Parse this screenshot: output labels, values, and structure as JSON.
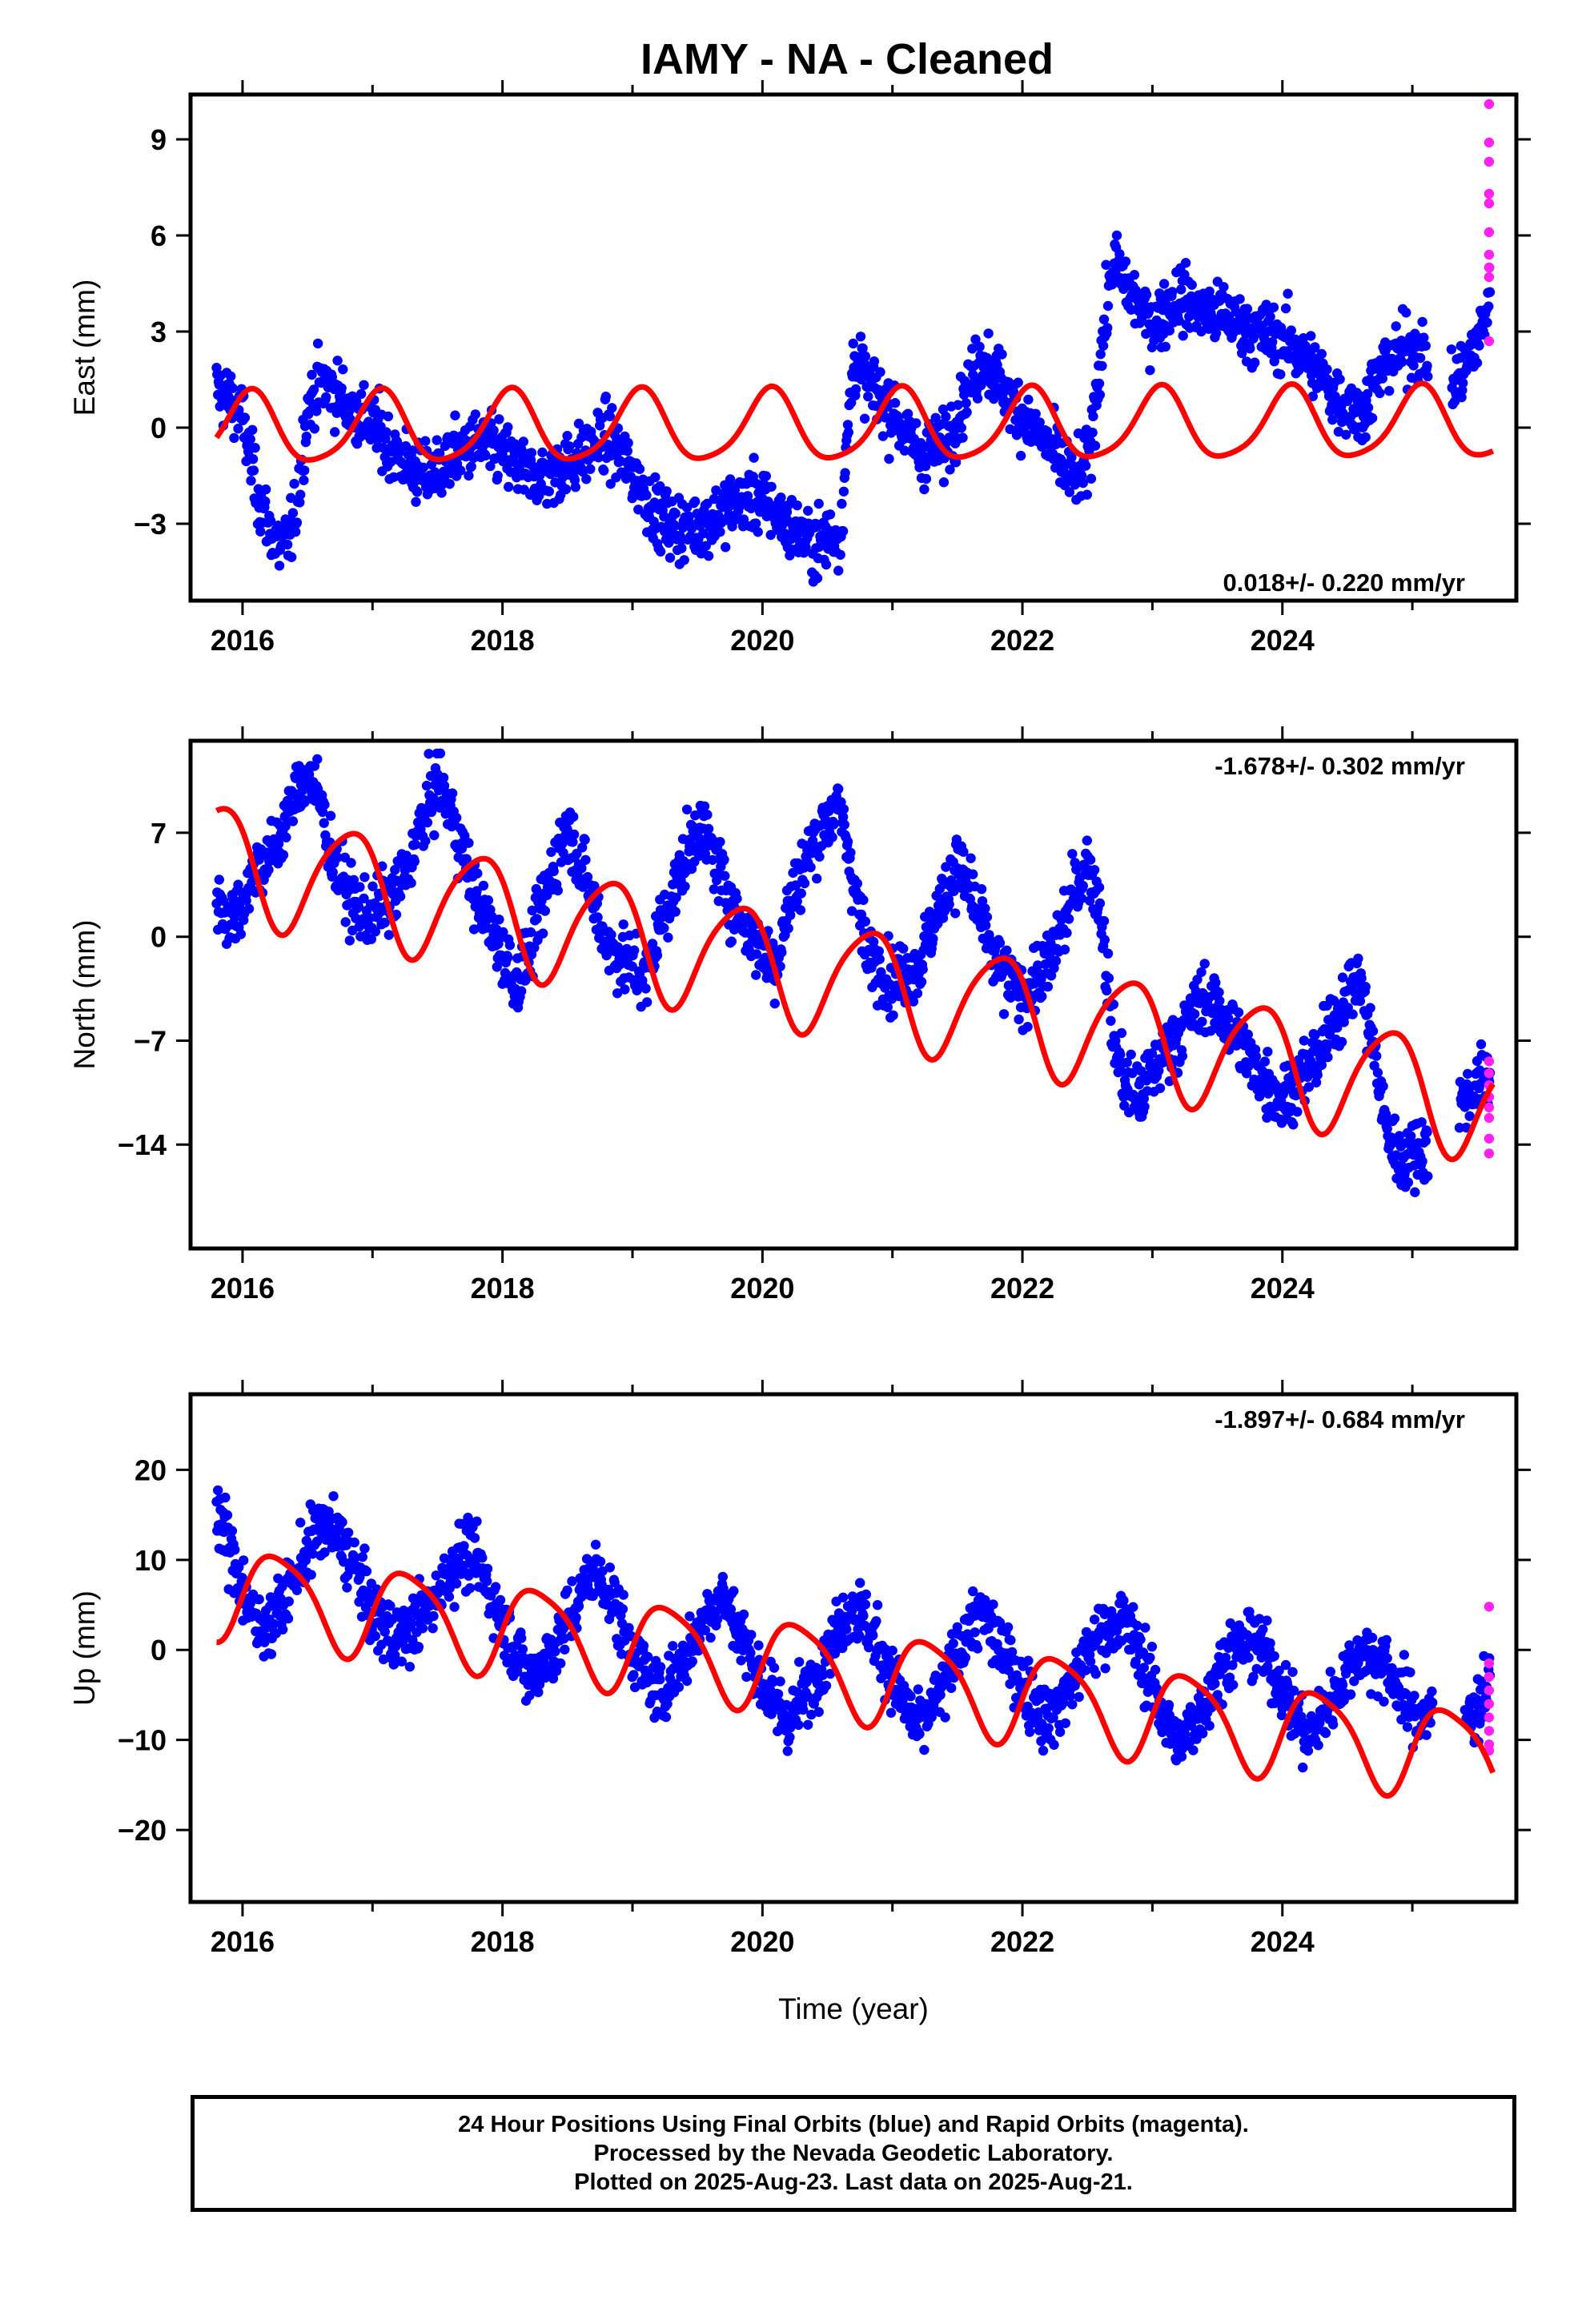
{
  "title": "IAMY  - NA - Cleaned",
  "colors": {
    "final": "#0000ff",
    "rapid": "#ff22ee",
    "model": "#ff0000"
  },
  "caption": [
    "24 Hour Positions Using Final Orbits (blue) and Rapid Orbits (magenta).",
    "Processed by the Nevada Geodetic Laboratory.",
    "Plotted on 2025-Aug-23. Last data on 2025-Aug-21."
  ],
  "chart_data": [
    {
      "type": "scatter",
      "ylabel": "East (mm)",
      "xlabel": "",
      "rate_label": "0.018+/- 0.220 mm/yr",
      "xlim": [
        2015.6,
        2025.8
      ],
      "ylim": [
        -5.4,
        10.4
      ],
      "yticks": [
        -3,
        0,
        3,
        6,
        9
      ],
      "ytick_labels": [
        "−3",
        "0",
        "3",
        "6",
        "9"
      ],
      "xticks": [
        2016,
        2018,
        2020,
        2022,
        2024
      ],
      "xtick_labels": [
        "2016",
        "2018",
        "2020",
        "2022",
        "2024"
      ],
      "final_orbit_series": [
        [
          2015.8,
          1.2
        ],
        [
          2015.9,
          0.9
        ],
        [
          2016.0,
          0.3
        ],
        [
          2016.1,
          -1.8
        ],
        [
          2016.2,
          -3.1
        ],
        [
          2016.3,
          -3.8
        ],
        [
          2016.4,
          -3.0
        ],
        [
          2016.5,
          0.6
        ],
        [
          2016.6,
          1.4
        ],
        [
          2016.7,
          1.2
        ],
        [
          2016.8,
          0.7
        ],
        [
          2016.9,
          0.4
        ],
        [
          2017.0,
          0.1
        ],
        [
          2017.2,
          -0.9
        ],
        [
          2017.4,
          -1.6
        ],
        [
          2017.6,
          -1.0
        ],
        [
          2017.8,
          -0.5
        ],
        [
          2018.0,
          -0.8
        ],
        [
          2018.2,
          -1.5
        ],
        [
          2018.4,
          -1.4
        ],
        [
          2018.6,
          -0.9
        ],
        [
          2018.8,
          -0.3
        ],
        [
          2019.0,
          -1.4
        ],
        [
          2019.2,
          -2.8
        ],
        [
          2019.4,
          -3.2
        ],
        [
          2019.6,
          -2.9
        ],
        [
          2019.8,
          -2.3
        ],
        [
          2020.0,
          -2.2
        ],
        [
          2020.2,
          -3.1
        ],
        [
          2020.4,
          -3.6
        ],
        [
          2020.6,
          -3.3
        ],
        [
          2020.7,
          2.2
        ],
        [
          2020.8,
          1.4
        ],
        [
          2021.0,
          0.5
        ],
        [
          2021.2,
          -0.8
        ],
        [
          2021.4,
          -0.6
        ],
        [
          2021.6,
          1.4
        ],
        [
          2021.7,
          2.3
        ],
        [
          2021.8,
          1.6
        ],
        [
          2022.0,
          0.4
        ],
        [
          2022.2,
          -0.6
        ],
        [
          2022.4,
          -1.6
        ],
        [
          2022.5,
          -1.3
        ],
        [
          2022.6,
          2.2
        ],
        [
          2022.7,
          5.2
        ],
        [
          2022.8,
          4.4
        ],
        [
          2023.0,
          3.2
        ],
        [
          2023.2,
          4.1
        ],
        [
          2023.4,
          3.6
        ],
        [
          2023.6,
          3.4
        ],
        [
          2023.8,
          2.9
        ],
        [
          2024.0,
          2.8
        ],
        [
          2024.2,
          2.1
        ],
        [
          2024.4,
          1.0
        ],
        [
          2024.6,
          0.4
        ],
        [
          2024.8,
          2.1
        ],
        [
          2025.0,
          2.6
        ],
        [
          2025.1,
          2.3
        ],
        [
          2025.3,
          1.1
        ],
        [
          2025.5,
          2.6
        ],
        [
          2025.6,
          4.2
        ]
      ],
      "rapid_orbit_points": [
        [
          2025.59,
          10.1
        ],
        [
          2025.59,
          8.9
        ],
        [
          2025.59,
          8.3
        ],
        [
          2025.59,
          7.3
        ],
        [
          2025.59,
          7.0
        ],
        [
          2025.59,
          6.1
        ],
        [
          2025.59,
          5.4
        ],
        [
          2025.59,
          5.0
        ],
        [
          2025.59,
          4.7
        ],
        [
          2025.59,
          2.7
        ]
      ],
      "model": {
        "slope": 0.018,
        "offset": 0.0,
        "annual_amp": 1.1,
        "annual_phase": 1.2,
        "semi_amp": 0.2,
        "semi_phase": 0.4,
        "t0": 2020.0
      }
    },
    {
      "type": "scatter",
      "ylabel": "North (mm)",
      "xlabel": "",
      "rate_label": "-1.678+/- 0.302 mm/yr",
      "xlim": [
        2015.6,
        2025.8
      ],
      "ylim": [
        -21.0,
        13.2
      ],
      "yticks": [
        -14,
        -7,
        0,
        7
      ],
      "ytick_labels": [
        "−14",
        "−7",
        "0",
        "7"
      ],
      "xticks": [
        2016,
        2018,
        2020,
        2022,
        2024
      ],
      "xtick_labels": [
        "2016",
        "2018",
        "2020",
        "2022",
        "2024"
      ],
      "final_orbit_series": [
        [
          2015.8,
          3.0
        ],
        [
          2015.9,
          1.0
        ],
        [
          2016.0,
          2.5
        ],
        [
          2016.1,
          4.5
        ],
        [
          2016.2,
          5.0
        ],
        [
          2016.3,
          7.0
        ],
        [
          2016.4,
          9.5
        ],
        [
          2016.5,
          11.0
        ],
        [
          2016.6,
          9.0
        ],
        [
          2016.7,
          5.0
        ],
        [
          2016.8,
          3.0
        ],
        [
          2016.9,
          1.5
        ],
        [
          2017.0,
          1.5
        ],
        [
          2017.2,
          3.0
        ],
        [
          2017.4,
          8.0
        ],
        [
          2017.5,
          10.5
        ],
        [
          2017.6,
          8.5
        ],
        [
          2017.8,
          2.5
        ],
        [
          2018.0,
          -1.0
        ],
        [
          2018.1,
          -3.0
        ],
        [
          2018.2,
          -1.5
        ],
        [
          2018.4,
          5.0
        ],
        [
          2018.5,
          7.5
        ],
        [
          2018.6,
          5.0
        ],
        [
          2018.8,
          -0.5
        ],
        [
          2019.0,
          -2.0
        ],
        [
          2019.1,
          -3.0
        ],
        [
          2019.2,
          0.5
        ],
        [
          2019.4,
          5.0
        ],
        [
          2019.5,
          7.5
        ],
        [
          2019.6,
          6.0
        ],
        [
          2019.8,
          1.5
        ],
        [
          2020.0,
          -1.0
        ],
        [
          2020.1,
          -2.0
        ],
        [
          2020.2,
          2.0
        ],
        [
          2020.4,
          6.5
        ],
        [
          2020.5,
          8.0
        ],
        [
          2020.6,
          8.5
        ],
        [
          2020.7,
          4.0
        ],
        [
          2020.8,
          -1.0
        ],
        [
          2021.0,
          -3.0
        ],
        [
          2021.2,
          -2.0
        ],
        [
          2021.4,
          3.0
        ],
        [
          2021.5,
          5.0
        ],
        [
          2021.6,
          3.0
        ],
        [
          2021.8,
          -2.0
        ],
        [
          2022.0,
          -4.0
        ],
        [
          2022.2,
          -2.0
        ],
        [
          2022.4,
          3.0
        ],
        [
          2022.5,
          5.0
        ],
        [
          2022.6,
          2.0
        ],
        [
          2022.7,
          -7.0
        ],
        [
          2022.8,
          -10.0
        ],
        [
          2022.9,
          -11.0
        ],
        [
          2023.0,
          -9.0
        ],
        [
          2023.2,
          -6.5
        ],
        [
          2023.4,
          -4.0
        ],
        [
          2023.6,
          -6.0
        ],
        [
          2023.8,
          -9.0
        ],
        [
          2024.0,
          -11.0
        ],
        [
          2024.2,
          -9.0
        ],
        [
          2024.4,
          -6.0
        ],
        [
          2024.5,
          -3.5
        ],
        [
          2024.6,
          -3.0
        ],
        [
          2024.7,
          -7.5
        ],
        [
          2024.8,
          -13.0
        ],
        [
          2024.9,
          -15.0
        ],
        [
          2025.0,
          -14.5
        ],
        [
          2025.1,
          -14.0
        ],
        [
          2025.4,
          -11.0
        ],
        [
          2025.5,
          -10.0
        ],
        [
          2025.6,
          -9.0
        ]
      ],
      "rapid_orbit_points": [
        [
          2025.59,
          -8.4
        ],
        [
          2025.59,
          -9.2
        ],
        [
          2025.59,
          -10.0
        ],
        [
          2025.59,
          -10.8
        ],
        [
          2025.59,
          -11.5
        ],
        [
          2025.59,
          -12.2
        ],
        [
          2025.59,
          -13.6
        ],
        [
          2025.59,
          -14.6
        ]
      ],
      "model": {
        "slope": -1.678,
        "offset": -1.8,
        "annual_amp": 3.8,
        "annual_phase": 2.7,
        "semi_amp": 0.6,
        "semi_phase": 1.4,
        "t0": 2020.0
      }
    },
    {
      "type": "scatter",
      "ylabel": "Up (mm)",
      "xlabel": "Time (year)",
      "rate_label": "-1.897+/- 0.684 mm/yr",
      "xlim": [
        2015.6,
        2025.8
      ],
      "ylim": [
        -28.0,
        28.4
      ],
      "yticks": [
        -20,
        -10,
        0,
        10,
        20
      ],
      "ytick_labels": [
        "−20",
        "−10",
        "0",
        "10",
        "20"
      ],
      "xticks": [
        2016,
        2018,
        2020,
        2022,
        2024
      ],
      "xtick_labels": [
        "2016",
        "2018",
        "2020",
        "2022",
        "2024"
      ],
      "final_orbit_series": [
        [
          2015.8,
          16.0
        ],
        [
          2015.9,
          11.0
        ],
        [
          2016.0,
          7.0
        ],
        [
          2016.1,
          3.0
        ],
        [
          2016.2,
          3.0
        ],
        [
          2016.3,
          5.0
        ],
        [
          2016.4,
          8.0
        ],
        [
          2016.5,
          11.0
        ],
        [
          2016.6,
          14.0
        ],
        [
          2016.7,
          13.0
        ],
        [
          2016.8,
          11.0
        ],
        [
          2016.9,
          8.0
        ],
        [
          2017.0,
          4.0
        ],
        [
          2017.2,
          1.0
        ],
        [
          2017.4,
          4.0
        ],
        [
          2017.6,
          9.0
        ],
        [
          2017.7,
          11.0
        ],
        [
          2017.8,
          10.0
        ],
        [
          2018.0,
          3.0
        ],
        [
          2018.2,
          -3.0
        ],
        [
          2018.4,
          0.0
        ],
        [
          2018.6,
          6.0
        ],
        [
          2018.7,
          9.0
        ],
        [
          2018.8,
          7.0
        ],
        [
          2019.0,
          0.0
        ],
        [
          2019.2,
          -5.0
        ],
        [
          2019.4,
          -1.0
        ],
        [
          2019.6,
          5.0
        ],
        [
          2019.7,
          6.0
        ],
        [
          2019.8,
          3.0
        ],
        [
          2020.0,
          -4.0
        ],
        [
          2020.2,
          -8.0
        ],
        [
          2020.4,
          -3.0
        ],
        [
          2020.6,
          3.0
        ],
        [
          2020.7,
          5.0
        ],
        [
          2020.8,
          3.0
        ],
        [
          2021.0,
          -3.0
        ],
        [
          2021.2,
          -9.0
        ],
        [
          2021.4,
          -4.0
        ],
        [
          2021.6,
          3.0
        ],
        [
          2021.7,
          4.0
        ],
        [
          2021.8,
          1.0
        ],
        [
          2022.0,
          -4.0
        ],
        [
          2022.2,
          -8.0
        ],
        [
          2022.4,
          -3.0
        ],
        [
          2022.6,
          2.0
        ],
        [
          2022.8,
          3.0
        ],
        [
          2023.0,
          -4.0
        ],
        [
          2023.2,
          -11.0
        ],
        [
          2023.4,
          -6.0
        ],
        [
          2023.6,
          0.0
        ],
        [
          2023.8,
          1.0
        ],
        [
          2024.0,
          -4.0
        ],
        [
          2024.2,
          -10.0
        ],
        [
          2024.4,
          -5.0
        ],
        [
          2024.6,
          0.0
        ],
        [
          2024.8,
          -2.0
        ],
        [
          2025.0,
          -7.0
        ],
        [
          2025.4,
          -8.0
        ],
        [
          2025.5,
          -6.0
        ],
        [
          2025.6,
          -4.0
        ]
      ],
      "rapid_orbit_points": [
        [
          2025.59,
          4.8
        ],
        [
          2025.59,
          -1.5
        ],
        [
          2025.59,
          -3.0
        ],
        [
          2025.59,
          -4.5
        ],
        [
          2025.59,
          -6.0
        ],
        [
          2025.59,
          -7.5
        ],
        [
          2025.59,
          -9.0
        ],
        [
          2025.59,
          -10.5
        ],
        [
          2025.59,
          -11.2
        ]
      ],
      "model": {
        "slope": -1.897,
        "offset": -1.2,
        "annual_amp": 5.0,
        "annual_phase": -0.2,
        "semi_amp": 1.0,
        "semi_phase": 0.6,
        "t0": 2020.0
      }
    }
  ]
}
